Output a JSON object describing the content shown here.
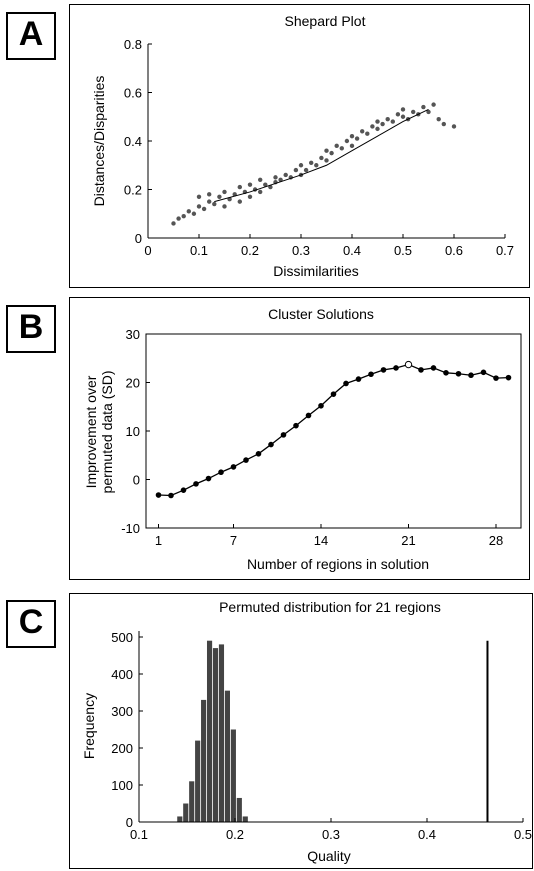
{
  "panels": [
    {
      "label": "A"
    },
    {
      "label": "B"
    },
    {
      "label": "C"
    }
  ],
  "chart_data": [
    {
      "type": "scatter",
      "title": "Shepard Plot",
      "xlabel": "Dissimilarities",
      "ylabel": "Distances/Disparities",
      "xlim": [
        0,
        0.7
      ],
      "ylim": [
        0,
        0.8
      ],
      "xticks": [
        "0",
        "0.1",
        "0.2",
        "0.3",
        "0.4",
        "0.5",
        "0.6",
        "0.7"
      ],
      "yticks": [
        "0",
        "0.2",
        "0.4",
        "0.6",
        "0.8"
      ],
      "marker_color": "#555555",
      "fit_line": {
        "x": [
          0.13,
          0.2,
          0.3,
          0.35,
          0.4,
          0.45,
          0.5,
          0.55
        ],
        "y": [
          0.15,
          0.19,
          0.26,
          0.3,
          0.36,
          0.42,
          0.48,
          0.53
        ]
      },
      "points": {
        "x": [
          0.05,
          0.06,
          0.07,
          0.08,
          0.09,
          0.1,
          0.1,
          0.11,
          0.12,
          0.12,
          0.13,
          0.14,
          0.15,
          0.15,
          0.16,
          0.17,
          0.18,
          0.18,
          0.19,
          0.2,
          0.2,
          0.21,
          0.22,
          0.22,
          0.23,
          0.24,
          0.25,
          0.25,
          0.26,
          0.27,
          0.28,
          0.29,
          0.3,
          0.3,
          0.31,
          0.32,
          0.33,
          0.34,
          0.35,
          0.35,
          0.36,
          0.37,
          0.38,
          0.39,
          0.4,
          0.4,
          0.41,
          0.42,
          0.43,
          0.44,
          0.45,
          0.45,
          0.46,
          0.47,
          0.48,
          0.49,
          0.5,
          0.5,
          0.51,
          0.52,
          0.53,
          0.54,
          0.55,
          0.56,
          0.57,
          0.58,
          0.6
        ],
        "y": [
          0.06,
          0.08,
          0.09,
          0.11,
          0.1,
          0.13,
          0.17,
          0.12,
          0.15,
          0.18,
          0.14,
          0.17,
          0.13,
          0.19,
          0.16,
          0.18,
          0.15,
          0.21,
          0.19,
          0.17,
          0.22,
          0.2,
          0.19,
          0.24,
          0.22,
          0.21,
          0.25,
          0.23,
          0.24,
          0.26,
          0.25,
          0.28,
          0.26,
          0.3,
          0.28,
          0.31,
          0.3,
          0.33,
          0.32,
          0.36,
          0.35,
          0.38,
          0.37,
          0.4,
          0.38,
          0.42,
          0.41,
          0.44,
          0.43,
          0.46,
          0.45,
          0.48,
          0.47,
          0.49,
          0.48,
          0.51,
          0.5,
          0.53,
          0.49,
          0.52,
          0.51,
          0.54,
          0.52,
          0.55,
          0.49,
          0.47,
          0.46
        ]
      }
    },
    {
      "type": "line",
      "title": "Cluster Solutions",
      "xlabel": "Number of regions in solution",
      "ylabel_line1": "Improvement over",
      "ylabel_line2": "permuted data (SD)",
      "xlim": [
        0,
        30
      ],
      "ylim": [
        -10,
        30
      ],
      "xticks": [
        "1",
        "7",
        "14",
        "21",
        "28"
      ],
      "yticks": [
        "-10",
        "0",
        "10",
        "20",
        "30"
      ],
      "x": [
        1,
        2,
        3,
        4,
        5,
        6,
        7,
        8,
        9,
        10,
        11,
        12,
        13,
        14,
        15,
        16,
        17,
        18,
        19,
        20,
        21,
        22,
        23,
        24,
        25,
        26,
        27,
        28,
        29
      ],
      "y": [
        -3.2,
        -3.3,
        -2.2,
        -0.9,
        0.2,
        1.5,
        2.6,
        4.0,
        5.3,
        7.2,
        9.2,
        11.1,
        13.2,
        15.2,
        17.6,
        19.8,
        20.7,
        21.7,
        22.6,
        23.0,
        23.7,
        22.6,
        23.0,
        22.0,
        21.8,
        21.5,
        22.1,
        20.9,
        21.0
      ],
      "highlight_x": 21
    },
    {
      "type": "bar",
      "title": "Permuted distribution for 21 regions",
      "xlabel": "Quality",
      "ylabel": "Frequency",
      "xlim": [
        0.1,
        0.5
      ],
      "ylim": [
        0,
        500
      ],
      "xticks": [
        "0.1",
        "0.2",
        "0.3",
        "0.4",
        "0.5"
      ],
      "yticks": [
        "0",
        "100",
        "200",
        "300",
        "400",
        "500"
      ],
      "bin_width": 0.0062,
      "bins_x": [
        0.1425,
        0.1487,
        0.1549,
        0.1611,
        0.1673,
        0.1735,
        0.1797,
        0.1859,
        0.1921,
        0.1983,
        0.2045,
        0.2107
      ],
      "bins_freq": [
        15,
        50,
        110,
        220,
        330,
        490,
        470,
        480,
        355,
        250,
        65,
        15
      ],
      "observed_value": 0.463,
      "observed_height": 490,
      "bar_color": "#444444"
    }
  ]
}
